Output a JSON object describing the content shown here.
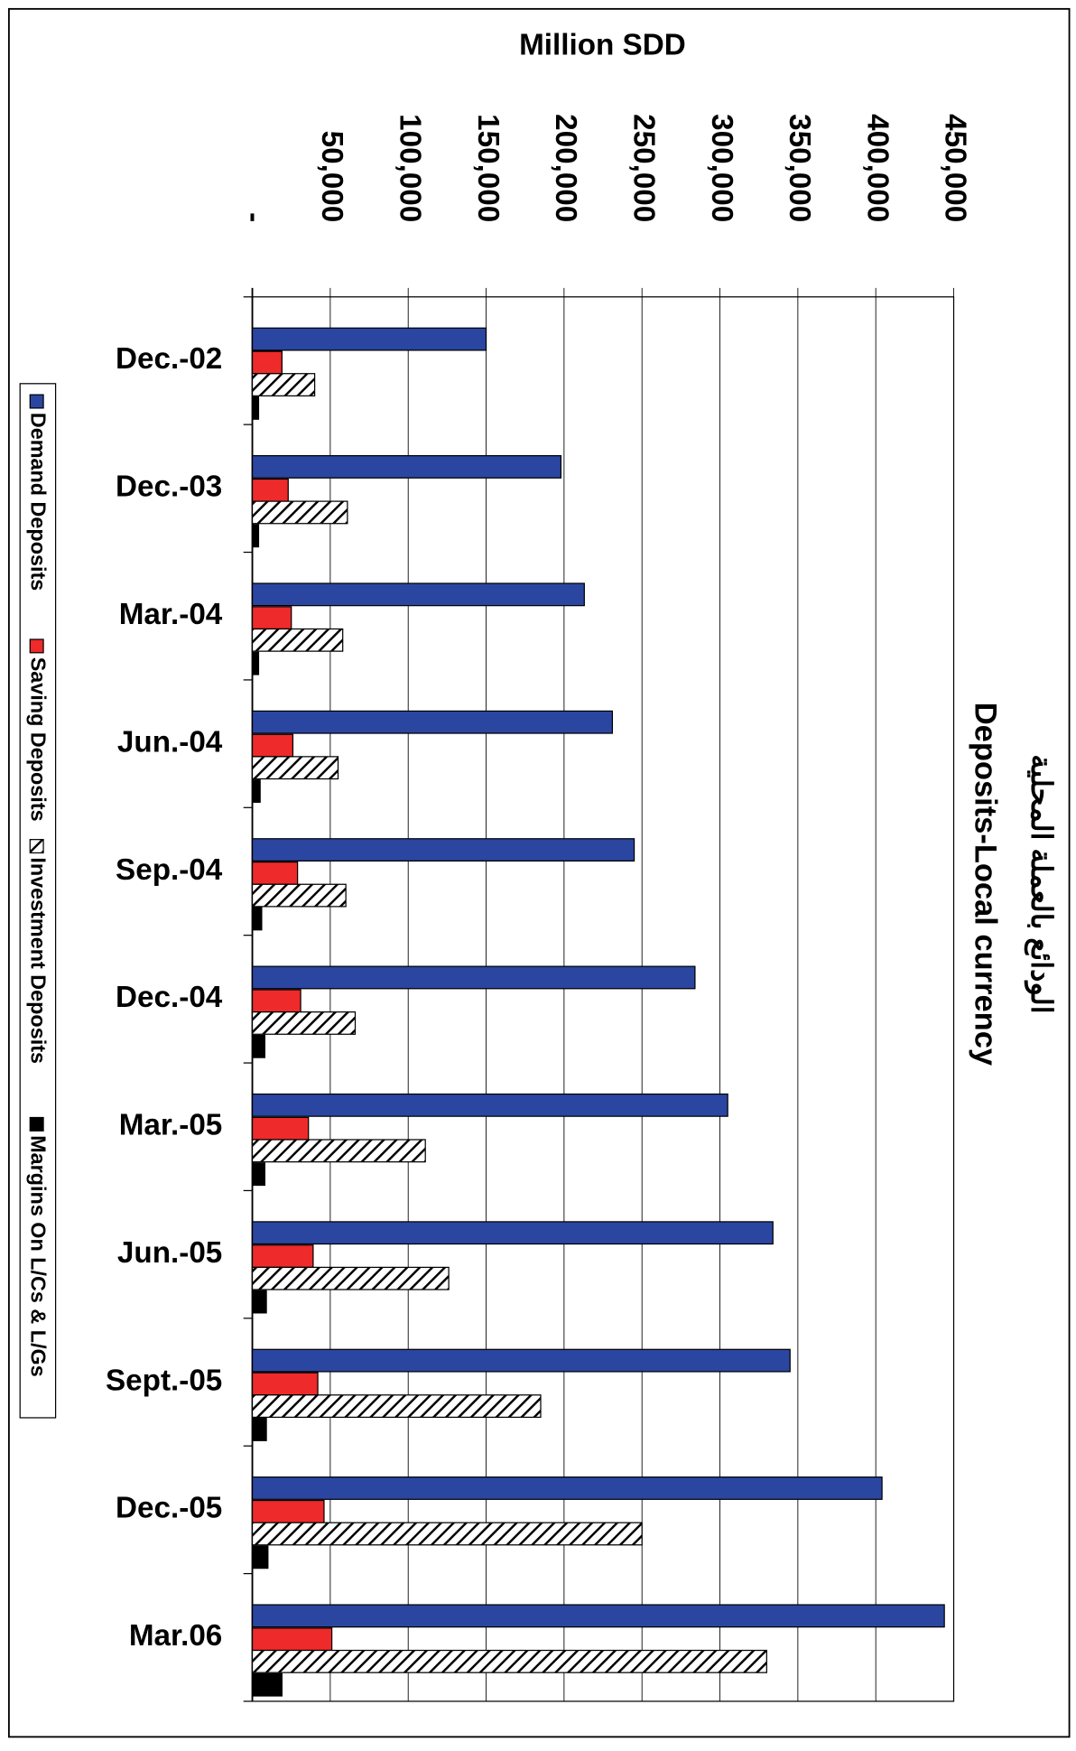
{
  "chart_data": {
    "type": "bar",
    "orientation": "horizontal",
    "title": "Deposits-Local currency",
    "subtitle": "الودائع بالعملة المحلية",
    "ylabel": "Million SDD",
    "categories": [
      "Dec.-02",
      "Dec.-03",
      "Mar.-04",
      "Jun.-04",
      "Sep.-04",
      "Dec.-04",
      "Mar.-05",
      "Jun.-05",
      "Sept.-05",
      "Dec.-05",
      "Mar.06"
    ],
    "series": [
      {
        "name": "Demand Deposits",
        "color": "#2b46a0",
        "values": [
          150000,
          198000,
          213000,
          231000,
          245000,
          284000,
          305000,
          334000,
          345000,
          404000,
          444000
        ]
      },
      {
        "name": "Saving Deposits",
        "color": "#ee2a2a",
        "values": [
          19000,
          23000,
          25000,
          26000,
          29000,
          31000,
          36000,
          39000,
          42000,
          46000,
          51000
        ]
      },
      {
        "name": "Investment Deposits",
        "color": "hatch",
        "values": [
          40000,
          61000,
          58000,
          55000,
          60000,
          66000,
          111000,
          126000,
          185000,
          250000,
          330000
        ]
      },
      {
        "name": "Margins On L/Cs & L/Gs",
        "color": "#000000",
        "values": [
          4000,
          4000,
          4000,
          5000,
          6000,
          8000,
          8000,
          9000,
          9000,
          10000,
          19000
        ]
      }
    ],
    "ylim": [
      0,
      450000
    ],
    "yticks": [
      {
        "value": 0,
        "label": "-"
      },
      {
        "value": 50000,
        "label": "50,000"
      },
      {
        "value": 100000,
        "label": "100,000"
      },
      {
        "value": 150000,
        "label": "150,000"
      },
      {
        "value": 200000,
        "label": "200,000"
      },
      {
        "value": 250000,
        "label": "250,000"
      },
      {
        "value": 300000,
        "label": "300,000"
      },
      {
        "value": 350000,
        "label": "350,000"
      },
      {
        "value": 400000,
        "label": "400,000"
      },
      {
        "value": 450000,
        "label": "450,000"
      }
    ],
    "legend": "left"
  }
}
